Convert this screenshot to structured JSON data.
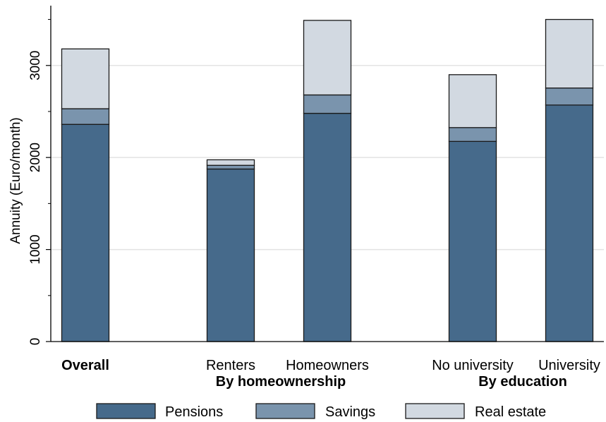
{
  "chart_data": {
    "type": "bar",
    "stacked": true,
    "ylabel": "Annuity (Euro/month)",
    "ylim": [
      0,
      3650
    ],
    "yticks": [
      0,
      1000,
      2000,
      3000
    ],
    "grid": true,
    "legend_position": "bottom",
    "categories": [
      {
        "label": "Overall",
        "bold": true
      },
      {
        "label": "Renters",
        "bold": false
      },
      {
        "label": "Homeowners",
        "bold": false
      },
      {
        "label": "No university",
        "bold": false
      },
      {
        "label": "University",
        "bold": false
      }
    ],
    "group_labels": [
      "By homeownership",
      "By education"
    ],
    "series": [
      {
        "name": "Pensions",
        "color": "#466a8b",
        "values": [
          2360,
          1875,
          2480,
          2175,
          2570
        ]
      },
      {
        "name": "Savings",
        "color": "#7a94ad",
        "values": [
          170,
          40,
          200,
          150,
          185
        ]
      },
      {
        "name": "Real estate",
        "color": "#d2d9e1",
        "values": [
          650,
          60,
          810,
          575,
          745
        ]
      }
    ]
  }
}
